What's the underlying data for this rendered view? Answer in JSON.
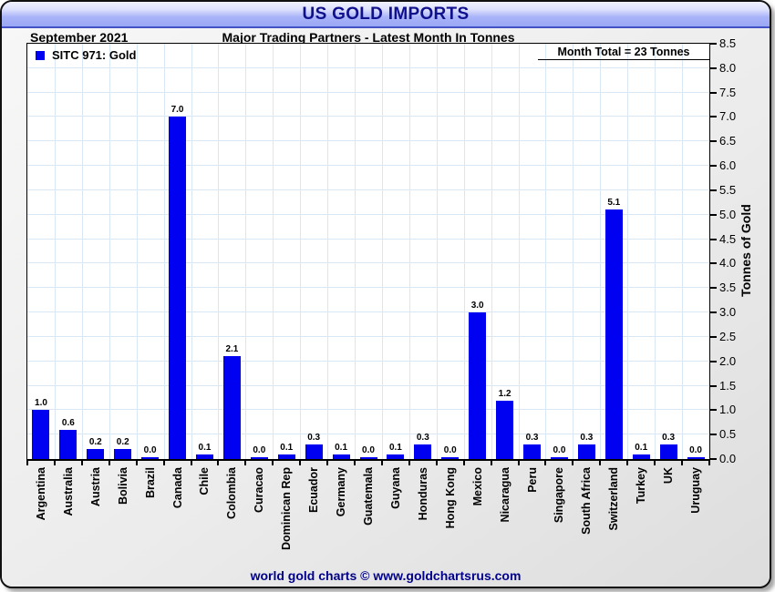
{
  "window": {
    "title": "US GOLD IMPORTS"
  },
  "header": {
    "date_label": "September 2021",
    "subtitle": "Major Trading Partners - Latest Month In Tonnes"
  },
  "annotation": {
    "month_total": "Month Total = 23 Tonnes"
  },
  "footer": {
    "credit": "world gold charts © www.goldchartsrus.com"
  },
  "colors": {
    "bar": "#0101f1",
    "grid": "#d9e6f4",
    "title_text": "#10108c",
    "footer_text": "#00008b",
    "titlebar_top": "#f1f2fe",
    "titlebar_bottom": "#9aa7f4"
  },
  "chart_data": {
    "type": "bar",
    "title": "US GOLD IMPORTS",
    "period": "September 2021",
    "subtitle": "Major Trading Partners - Latest Month In Tonnes",
    "annotation": "Month Total = 23 Tonnes",
    "month_total_tonnes": 23,
    "categories": [
      "Argentina",
      "Australia",
      "Austria",
      "Bolivia",
      "Brazil",
      "Canada",
      "Chile",
      "Colombia",
      "Curacao",
      "Dominican Rep",
      "Ecuador",
      "Germany",
      "Guatemala",
      "Guyana",
      "Honduras",
      "Hong Kong",
      "Mexico",
      "Nicaragua",
      "Peru",
      "Singapore",
      "South Africa",
      "Switzerland",
      "Turkey",
      "UK",
      "Uruguay"
    ],
    "series": [
      {
        "name": "SITC 971: Gold",
        "values": [
          1.0,
          0.6,
          0.2,
          0.2,
          0.0,
          7.0,
          0.1,
          2.1,
          0.0,
          0.1,
          0.3,
          0.1,
          0.0,
          0.1,
          0.3,
          0.0,
          3.0,
          1.2,
          0.3,
          0.0,
          0.3,
          5.1,
          0.1,
          0.3,
          0.0
        ]
      }
    ],
    "xlabel": "",
    "ylabel": "Tonnes of Gold",
    "ylim": [
      0,
      8.5
    ],
    "ytick_step": 0.5,
    "grid": true,
    "legend_position": "top-left-inside",
    "value_labels": true,
    "value_label_decimals": 1
  }
}
